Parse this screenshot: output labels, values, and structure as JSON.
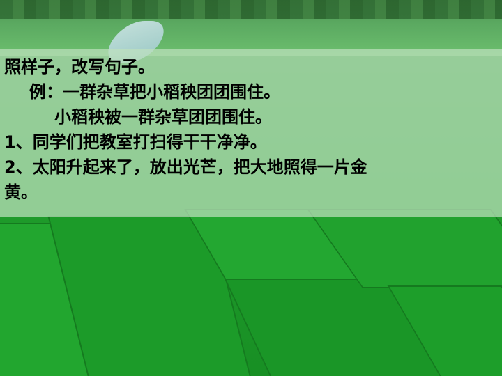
{
  "slide": {
    "instruction": "照样子，改写句子。",
    "example_line": "例：一群杂草把小稻秧团团围住。",
    "example_answer": "小稻秧被一群杂草团团围住。",
    "item1": "1、同学们把教室打扫得干干净净。",
    "item2_line1": "2、太阳升起来了，放出光芒，把大地照得一片金",
    "item2_line2": "黄。"
  }
}
